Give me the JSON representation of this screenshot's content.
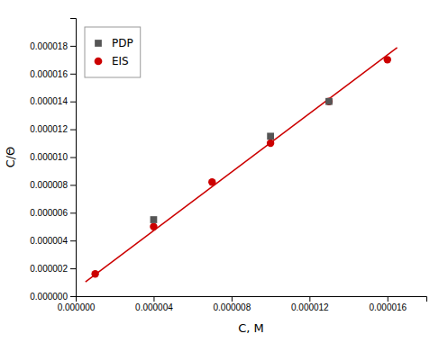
{
  "chart_data": {
    "type": "scatter",
    "xlabel": "C, M",
    "ylabel": "C/Θ",
    "xlim": [
      0.0,
      1.8e-05
    ],
    "ylim": [
      0.0,
      2e-05
    ],
    "xticks": [
      {
        "value": 0.0,
        "label": "0.000000"
      },
      {
        "value": 4e-06,
        "label": "0.000004"
      },
      {
        "value": 8e-06,
        "label": "0.000008"
      },
      {
        "value": 1.2e-05,
        "label": "0.000012"
      },
      {
        "value": 1.6e-05,
        "label": "0.000016"
      }
    ],
    "yticks": [
      {
        "value": 0.0,
        "label": "0.000000"
      },
      {
        "value": 2e-06,
        "label": "0.000002"
      },
      {
        "value": 4e-06,
        "label": "0.000004"
      },
      {
        "value": 6e-06,
        "label": "0.000006"
      },
      {
        "value": 8e-06,
        "label": "0.000008"
      },
      {
        "value": 1e-05,
        "label": "0.000010"
      },
      {
        "value": 1.2e-05,
        "label": "0.000012"
      },
      {
        "value": 1.4e-05,
        "label": "0.000014"
      },
      {
        "value": 1.6e-05,
        "label": "0.000016"
      },
      {
        "value": 1.8e-05,
        "label": "0.000018"
      }
    ],
    "grid": false,
    "legend": "upper left",
    "series": [
      {
        "name": "PDP",
        "color": "#555555",
        "marker": "square",
        "x": [
          4e-06,
          1e-05,
          1.3e-05
        ],
        "values": [
          5.5e-06,
          1.15e-05,
          1.4e-05
        ]
      },
      {
        "name": "EIS",
        "color": "#cc0000",
        "marker": "circle",
        "x": [
          1e-06,
          4e-06,
          7e-06,
          1e-05,
          1.3e-05,
          1.6e-05
        ],
        "values": [
          1.6e-06,
          5e-06,
          8.2e-06,
          1.1e-05,
          1.4e-05,
          1.7e-05
        ]
      },
      {
        "type": "line",
        "color": "#cc0000",
        "x": [
          5e-07,
          1.65e-05
        ],
        "values": [
          1.0265e-06,
          1.78745e-05
        ]
      }
    ]
  }
}
